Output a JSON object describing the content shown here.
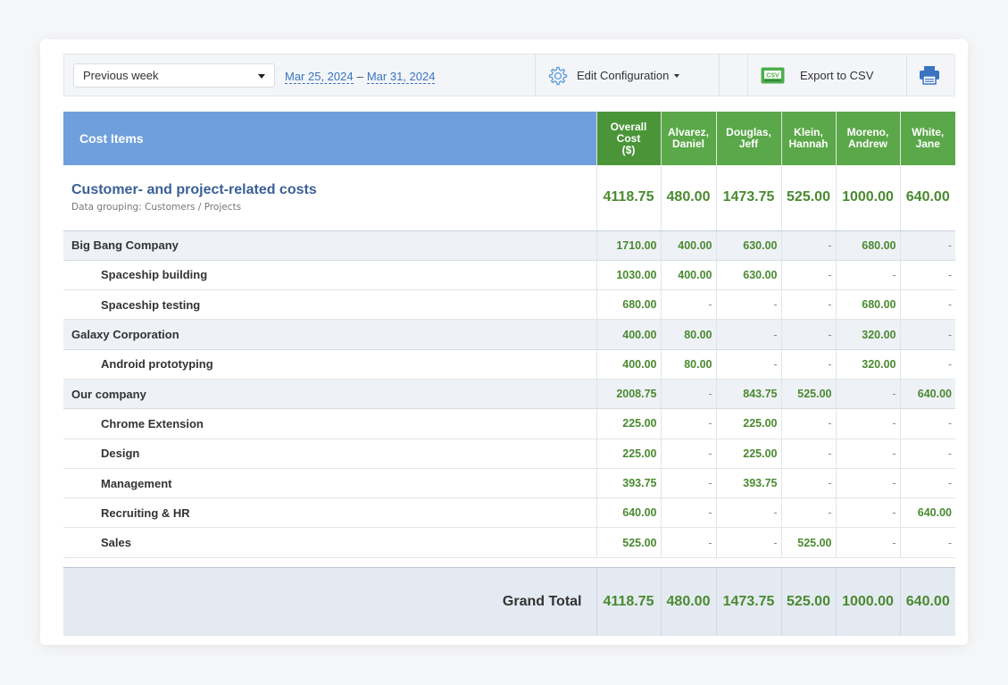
{
  "toolbar": {
    "period": "Previous week",
    "date_from": "Mar 25, 2024",
    "date_sep": "–",
    "date_to": "Mar 31, 2024",
    "edit_config": "Edit Configuration",
    "export_csv": "Export to CSV",
    "csv_badge": "CSV"
  },
  "columns": {
    "cost_items": "Cost Items",
    "overall_l1": "Overall",
    "overall_l2": "Cost",
    "overall_l3": "($)",
    "people": [
      {
        "l1": "Alvarez,",
        "l2": "Daniel"
      },
      {
        "l1": "Douglas,",
        "l2": "Jeff"
      },
      {
        "l1": "Klein,",
        "l2": "Hannah"
      },
      {
        "l1": "Moreno,",
        "l2": "Andrew"
      },
      {
        "l1": "White,",
        "l2": "Jane"
      }
    ]
  },
  "summary": {
    "title": "Customer- and project-related costs",
    "subtitle": "Data grouping: Customers / Projects",
    "values": [
      "4118.75",
      "480.00",
      "1473.75",
      "525.00",
      "1000.00",
      "640.00"
    ]
  },
  "rows": [
    {
      "label": "Big Bang Company",
      "values": [
        "1710.00",
        "400.00",
        "630.00",
        "-",
        "680.00",
        "-"
      ]
    },
    {
      "label": "Spaceship building",
      "values": [
        "1030.00",
        "400.00",
        "630.00",
        "-",
        "-",
        "-"
      ]
    },
    {
      "label": "Spaceship testing",
      "values": [
        "680.00",
        "-",
        "-",
        "-",
        "680.00",
        "-"
      ]
    },
    {
      "label": "Galaxy Corporation",
      "values": [
        "400.00",
        "80.00",
        "-",
        "-",
        "320.00",
        "-"
      ]
    },
    {
      "label": "Android prototyping",
      "values": [
        "400.00",
        "80.00",
        "-",
        "-",
        "320.00",
        "-"
      ]
    },
    {
      "label": "Our company",
      "values": [
        "2008.75",
        "-",
        "843.75",
        "525.00",
        "-",
        "640.00"
      ]
    },
    {
      "label": "Chrome Extension",
      "values": [
        "225.00",
        "-",
        "225.00",
        "-",
        "-",
        "-"
      ]
    },
    {
      "label": "Design",
      "values": [
        "225.00",
        "-",
        "225.00",
        "-",
        "-",
        "-"
      ]
    },
    {
      "label": "Management",
      "values": [
        "393.75",
        "-",
        "393.75",
        "-",
        "-",
        "-"
      ]
    },
    {
      "label": "Recruiting & HR",
      "values": [
        "640.00",
        "-",
        "-",
        "-",
        "-",
        "640.00"
      ]
    },
    {
      "label": "Sales",
      "values": [
        "525.00",
        "-",
        "-",
        "525.00",
        "-",
        "-"
      ]
    }
  ],
  "grand_total": {
    "label": "Grand Total",
    "values": [
      "4118.75",
      "480.00",
      "1473.75",
      "525.00",
      "1000.00",
      "640.00"
    ]
  },
  "colors": {
    "header_blue": "#6fa0dd",
    "header_green": "#5ba84a",
    "value_green": "#4a8a30",
    "link_blue": "#3a74c0"
  },
  "icons": [
    "gear-icon",
    "csv-icon",
    "printer-icon",
    "chevron-down-icon"
  ]
}
